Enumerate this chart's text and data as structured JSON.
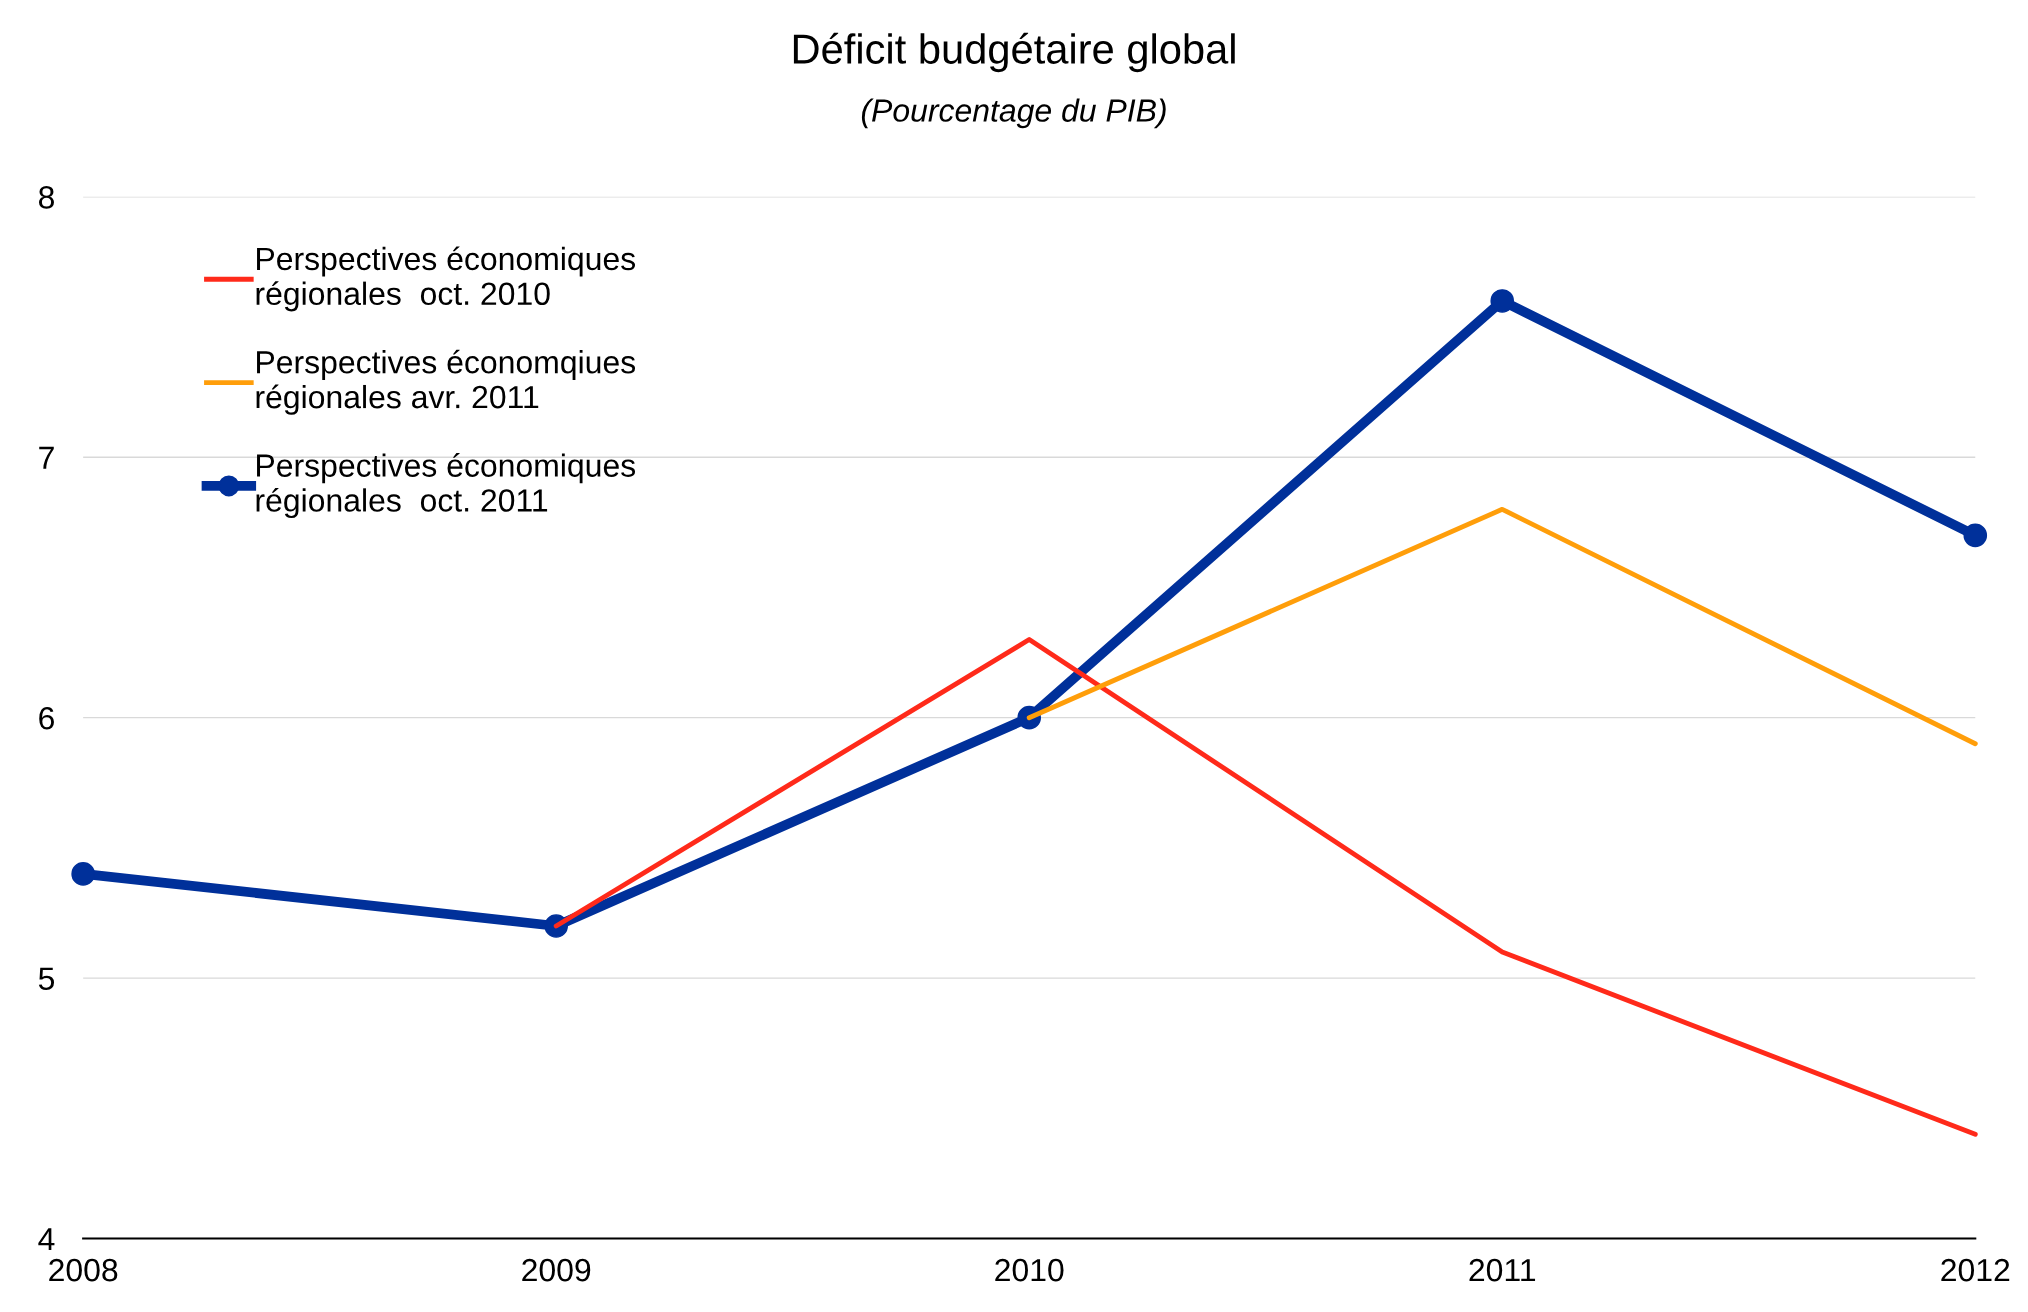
{
  "chart_data": {
    "type": "line",
    "title": "Déficit budgétaire global",
    "subtitle": "(Pourcentage du PIB)",
    "x": [
      2008,
      2009,
      2010,
      2011,
      2012
    ],
    "xlim": [
      2008,
      2012
    ],
    "xticks": [
      2008,
      2009,
      2010,
      2011,
      2012
    ],
    "ylim": [
      4,
      8
    ],
    "yticks": [
      4,
      5,
      6,
      7,
      8
    ],
    "grid": "y",
    "legend": "top left",
    "series": [
      {
        "name": "Perspectives économiques\nrégionales  oct. 2010",
        "color": "#ff2a1a",
        "values": [
          null,
          5.2,
          6.3,
          5.1,
          4.4
        ]
      },
      {
        "name": "Perspectives économqiues\nrégionales avr. 2011",
        "color": "#ff9e0a",
        "values": [
          null,
          null,
          6.0,
          6.8,
          5.9
        ]
      },
      {
        "name": "Perspectives économiques\nrégionales  oct. 2011",
        "color": "#00309a",
        "values": [
          5.4,
          5.2,
          6.0,
          7.6,
          6.7
        ],
        "marker": "circle"
      }
    ]
  }
}
